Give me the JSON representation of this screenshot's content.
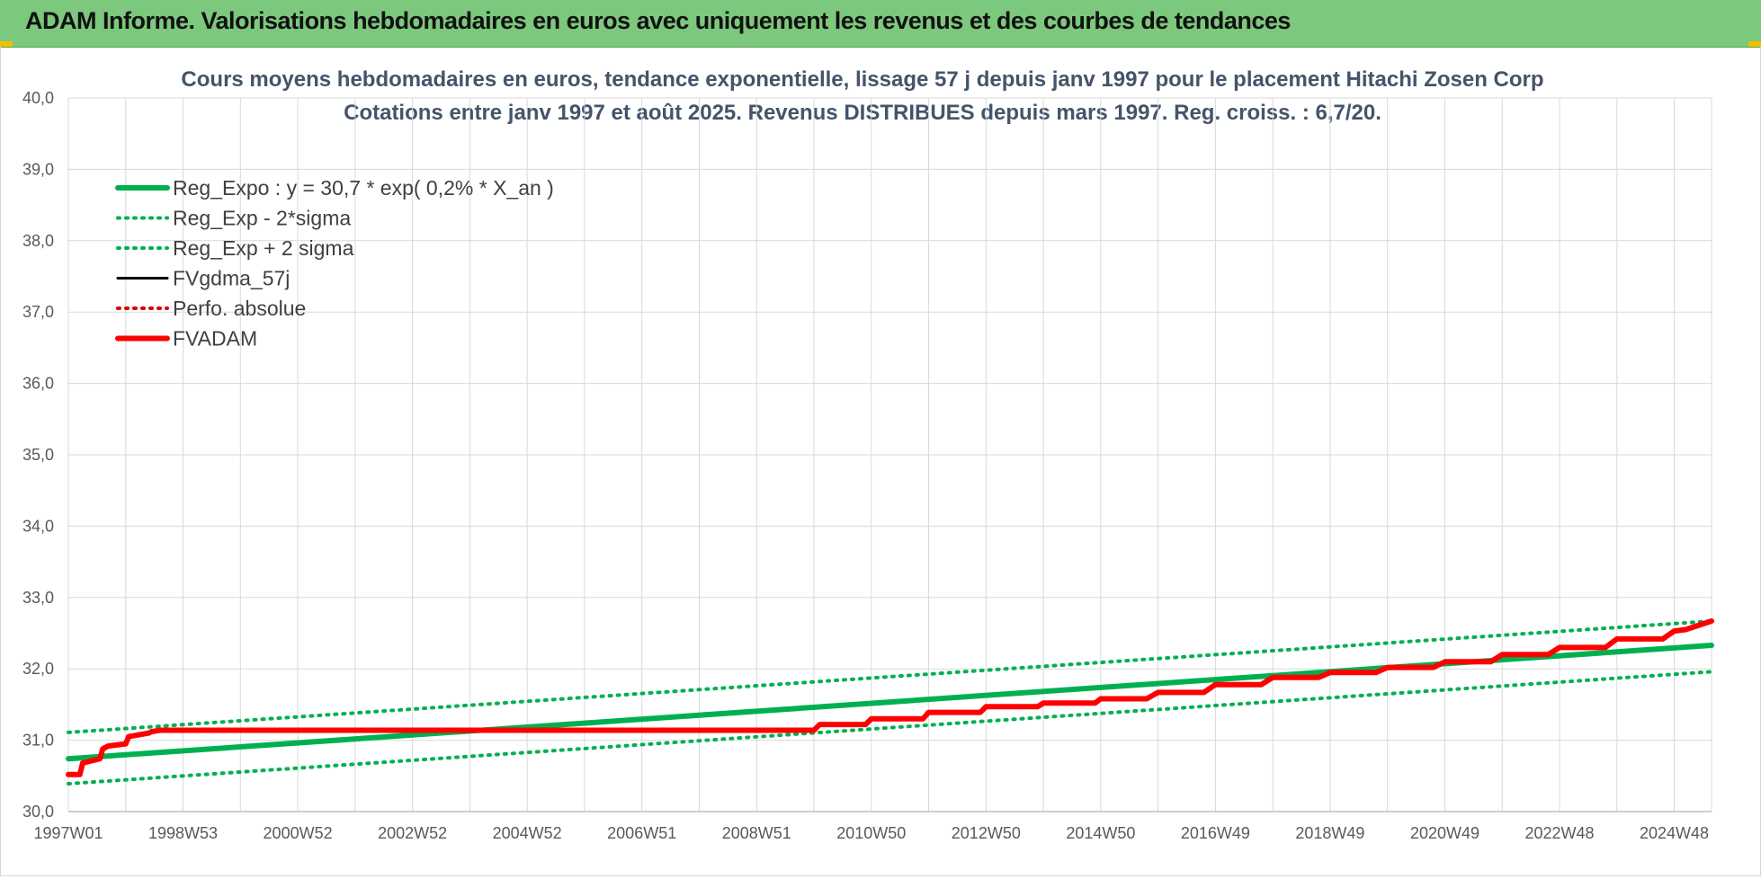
{
  "banner": {
    "title": "ADAM Informe. Valorisations hebdomadaires en euros avec uniquement les revenus et des courbes de tendances"
  },
  "colors": {
    "banner_bg": "#7cc87c",
    "trend_green": "#00b050",
    "fv_black": "#000000",
    "perf_red": "#e00000",
    "fvadam_red": "#ff0000",
    "title_text": "#44546a"
  },
  "chart_data": {
    "type": "line",
    "title_lines": [
      "Cours moyens hebdomadaires en euros, tendance exponentielle, lissage 57 j depuis janv 1997  pour le placement Hitachi Zosen Corp",
      "Cotations entre janv 1997 et août 2025.  Revenus DISTRIBUES depuis mars 1997. Reg. croiss. : 6,7/20."
    ],
    "ylim": [
      30.0,
      40.0
    ],
    "yticks": [
      "30,0",
      "31,0",
      "32,0",
      "33,0",
      "34,0",
      "35,0",
      "36,0",
      "37,0",
      "38,0",
      "39,0",
      "40,0"
    ],
    "xlim": [
      1997.0,
      2025.65
    ],
    "xticks": [
      {
        "label": "1997W01",
        "x": 1997.0
      },
      {
        "label": "1998W53",
        "x": 1999.0
      },
      {
        "label": "2000W52",
        "x": 2001.0
      },
      {
        "label": "2002W52",
        "x": 2003.0
      },
      {
        "label": "2004W52",
        "x": 2005.0
      },
      {
        "label": "2006W51",
        "x": 2007.0
      },
      {
        "label": "2008W51",
        "x": 2009.0
      },
      {
        "label": "2010W50",
        "x": 2011.0
      },
      {
        "label": "2012W50",
        "x": 2013.0
      },
      {
        "label": "2014W50",
        "x": 2015.0
      },
      {
        "label": "2016W49",
        "x": 2017.0
      },
      {
        "label": "2018W49",
        "x": 2019.0
      },
      {
        "label": "2020W49",
        "x": 2021.0
      },
      {
        "label": "2022W48",
        "x": 2023.0
      },
      {
        "label": "2024W48",
        "x": 2025.0
      }
    ],
    "grid": true,
    "legend_position": "top-left",
    "series": [
      {
        "name": "Reg_Expo : y = 30,7 * exp( 0,2% *  X_an )",
        "style": "solid-thick",
        "color": "#00b050",
        "x": [
          1997.0,
          2025.65
        ],
        "y": [
          30.74,
          32.33
        ]
      },
      {
        "name": "Reg_Exp - 2*sigma",
        "style": "dotted",
        "color": "#00b050",
        "x": [
          1997.0,
          2025.65
        ],
        "y": [
          30.39,
          31.96
        ]
      },
      {
        "name": "Reg_Exp + 2 sigma",
        "style": "dotted",
        "color": "#00b050",
        "x": [
          1997.0,
          2025.65
        ],
        "y": [
          31.11,
          32.67
        ]
      },
      {
        "name": "FVgdma_57j",
        "style": "solid",
        "color": "#000000",
        "x": [
          1997.0,
          1997.2,
          1997.25,
          1997.55,
          1997.6,
          1997.7,
          1998.0,
          1998.05,
          1998.4,
          1998.45,
          1998.6,
          2010.0,
          2010.1,
          2010.9,
          2011.0,
          2011.9,
          2012.0,
          2012.9,
          2013.0,
          2013.9,
          2014.0,
          2014.9,
          2015.0,
          2015.8,
          2016.0,
          2016.8,
          2017.0,
          2017.8,
          2018.0,
          2018.8,
          2019.0,
          2019.8,
          2020.0,
          2020.8,
          2021.0,
          2021.8,
          2022.0,
          2022.8,
          2023.0,
          2023.8,
          2024.0,
          2024.8,
          2025.0,
          2025.2,
          2025.65
        ],
        "y": [
          30.52,
          30.52,
          30.68,
          30.74,
          30.88,
          30.92,
          30.95,
          31.05,
          31.1,
          31.12,
          31.14,
          31.14,
          31.22,
          31.22,
          31.3,
          31.3,
          31.39,
          31.39,
          31.47,
          31.47,
          31.52,
          31.52,
          31.58,
          31.58,
          31.67,
          31.67,
          31.78,
          31.78,
          31.88,
          31.88,
          31.95,
          31.95,
          32.02,
          32.02,
          32.1,
          32.1,
          32.2,
          32.2,
          32.3,
          32.3,
          32.42,
          32.42,
          32.53,
          32.55,
          32.67
        ]
      },
      {
        "name": "Perfo. absolue",
        "style": "dotted",
        "color": "#e00000",
        "x": [
          1997.0,
          1997.2,
          1997.25,
          1997.55,
          1997.6,
          1997.7,
          1998.0,
          1998.05,
          1998.4,
          1998.45,
          1998.6,
          2010.0,
          2010.1,
          2010.9,
          2011.0,
          2011.9,
          2012.0,
          2012.9,
          2013.0,
          2013.9,
          2014.0,
          2014.9,
          2015.0,
          2015.8,
          2016.0,
          2016.8,
          2017.0,
          2017.8,
          2018.0,
          2018.8,
          2019.0,
          2019.8,
          2020.0,
          2020.8,
          2021.0,
          2021.8,
          2022.0,
          2022.8,
          2023.0,
          2023.8,
          2024.0,
          2024.8,
          2025.0,
          2025.2,
          2025.65
        ],
        "y": [
          30.52,
          30.52,
          30.68,
          30.74,
          30.88,
          30.92,
          30.95,
          31.05,
          31.1,
          31.12,
          31.14,
          31.14,
          31.22,
          31.22,
          31.3,
          31.3,
          31.39,
          31.39,
          31.47,
          31.47,
          31.52,
          31.52,
          31.58,
          31.58,
          31.67,
          31.67,
          31.78,
          31.78,
          31.88,
          31.88,
          31.95,
          31.95,
          32.02,
          32.02,
          32.1,
          32.1,
          32.2,
          32.2,
          32.3,
          32.3,
          32.42,
          32.42,
          32.53,
          32.55,
          32.67
        ]
      },
      {
        "name": "FVADAM",
        "style": "solid-thick",
        "color": "#ff0000",
        "x": [
          1997.0,
          1997.2,
          1997.25,
          1997.55,
          1997.6,
          1997.7,
          1998.0,
          1998.05,
          1998.4,
          1998.45,
          1998.6,
          2010.0,
          2010.1,
          2010.9,
          2011.0,
          2011.9,
          2012.0,
          2012.9,
          2013.0,
          2013.9,
          2014.0,
          2014.9,
          2015.0,
          2015.8,
          2016.0,
          2016.8,
          2017.0,
          2017.8,
          2018.0,
          2018.8,
          2019.0,
          2019.8,
          2020.0,
          2020.8,
          2021.0,
          2021.8,
          2022.0,
          2022.8,
          2023.0,
          2023.8,
          2024.0,
          2024.8,
          2025.0,
          2025.2,
          2025.65
        ],
        "y": [
          30.52,
          30.52,
          30.68,
          30.74,
          30.88,
          30.92,
          30.95,
          31.05,
          31.1,
          31.12,
          31.14,
          31.14,
          31.22,
          31.22,
          31.3,
          31.3,
          31.39,
          31.39,
          31.47,
          31.47,
          31.52,
          31.52,
          31.58,
          31.58,
          31.67,
          31.67,
          31.78,
          31.78,
          31.88,
          31.88,
          31.95,
          31.95,
          32.02,
          32.02,
          32.1,
          32.1,
          32.2,
          32.2,
          32.3,
          32.3,
          32.42,
          32.42,
          32.53,
          32.55,
          32.67
        ]
      }
    ]
  }
}
